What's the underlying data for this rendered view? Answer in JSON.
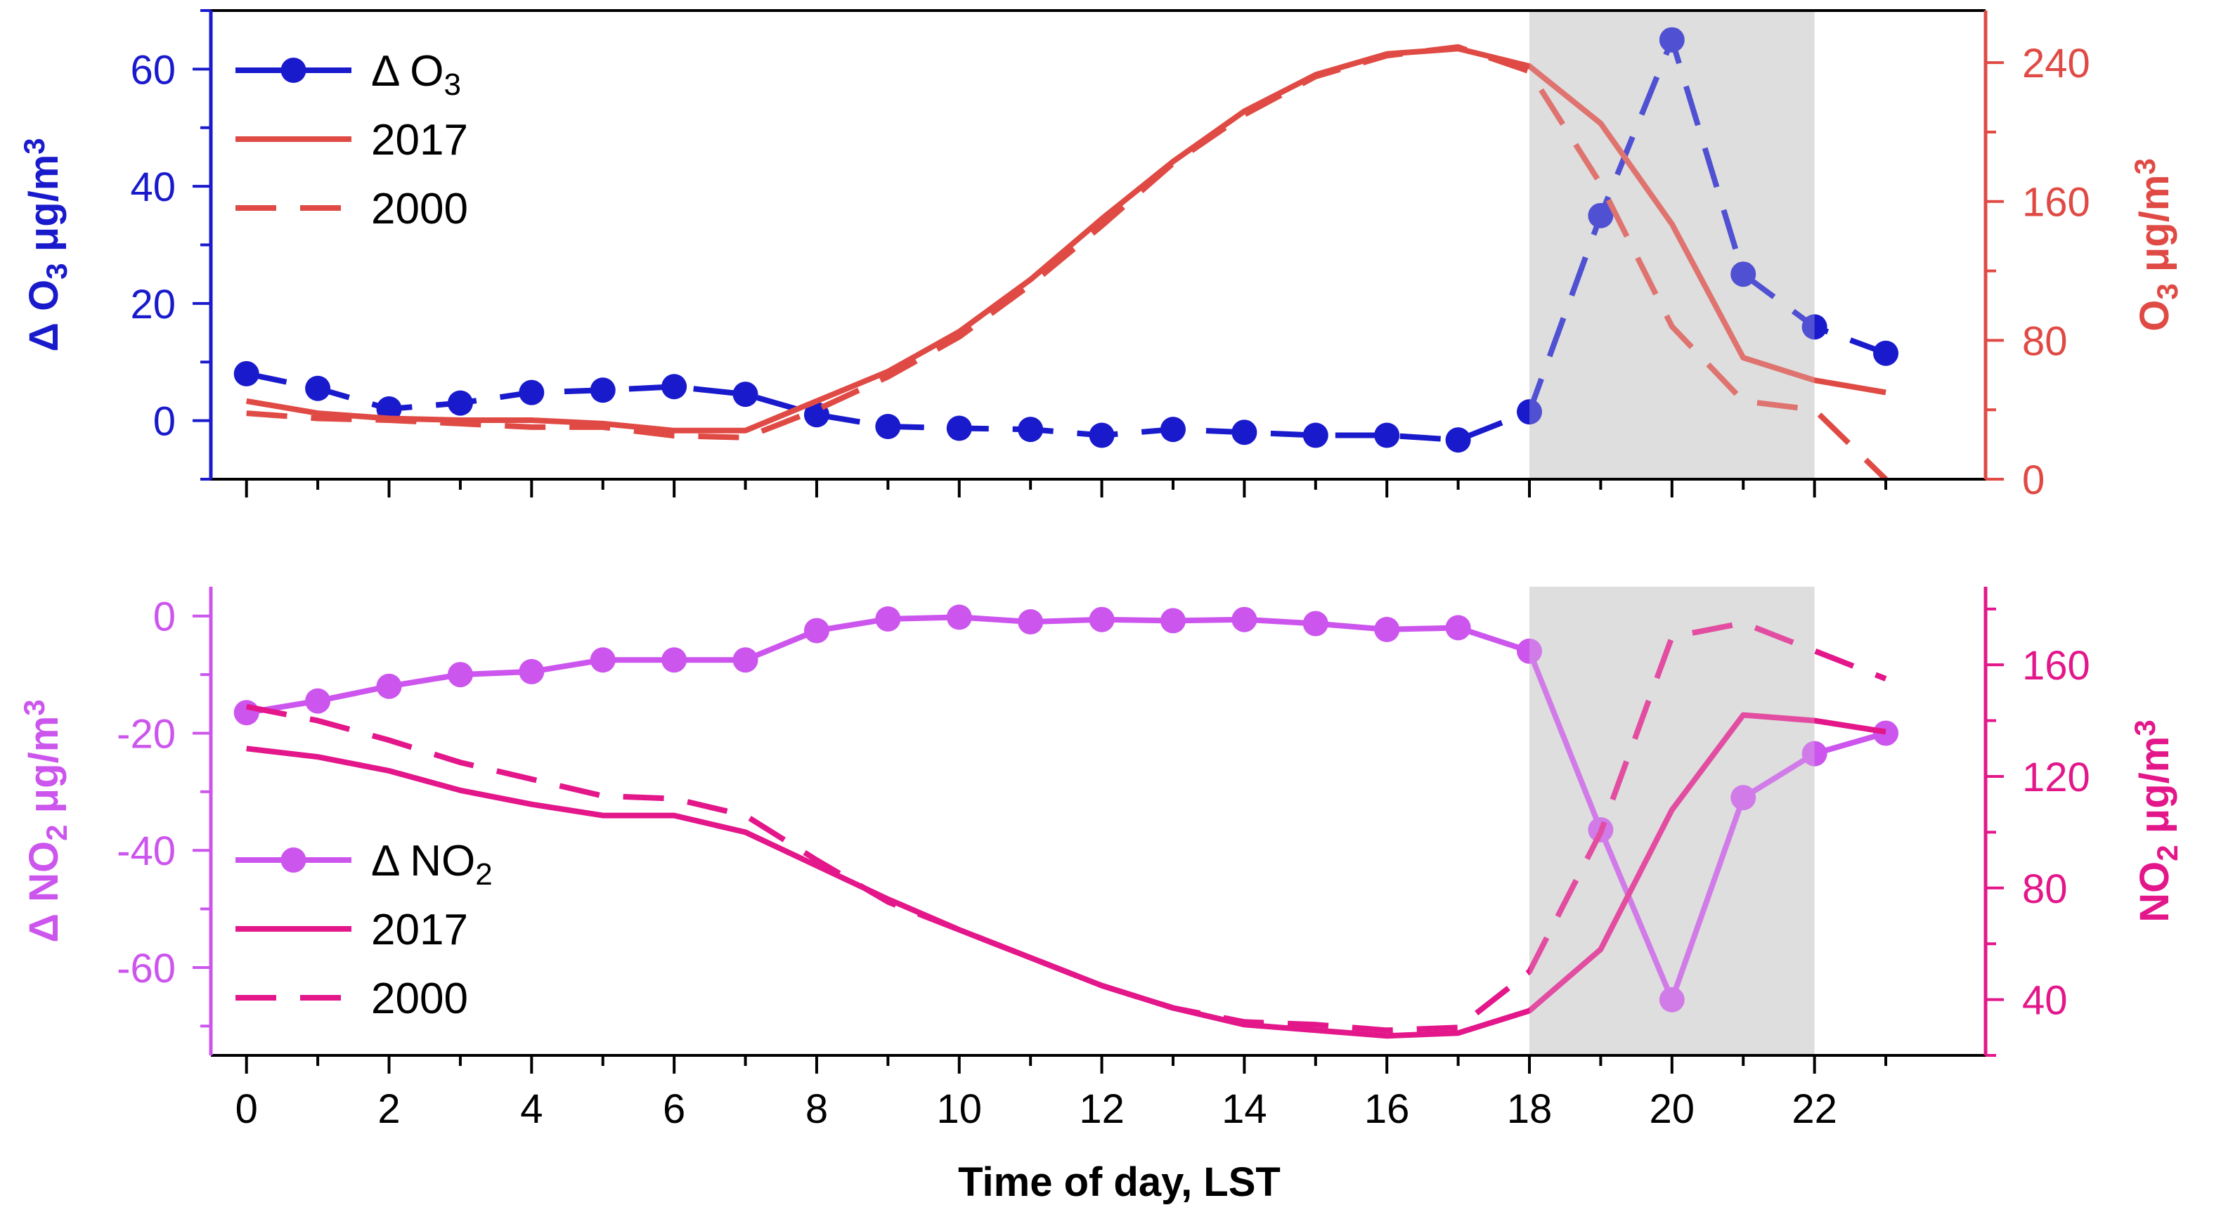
{
  "chart_data": [
    {
      "type": "line",
      "panel": "top",
      "xlabel": "Time of day, LST",
      "xlim": [
        -0.5,
        24.4
      ],
      "x_ticks": [
        "0",
        "2",
        "4",
        "6",
        "8",
        "10",
        "12",
        "14",
        "16",
        "18",
        "20",
        "22"
      ],
      "shaded_region": [
        18,
        22
      ],
      "x": [
        0,
        1,
        2,
        3,
        4,
        5,
        6,
        7,
        8,
        9,
        10,
        11,
        12,
        13,
        14,
        15,
        16,
        17,
        18,
        19,
        20,
        21,
        22,
        23
      ],
      "y_left": {
        "label_main": "Δ O",
        "label_sub": "3",
        "label_unit": " μg/m",
        "label_sup": "3",
        "lim": [
          -10,
          70
        ],
        "ticks": [
          "0",
          "20",
          "40",
          "60"
        ],
        "color": "#1a1acd"
      },
      "y_right": {
        "label_main": "O",
        "label_sub": "3",
        "label_unit": " μg/m",
        "label_sup": "3",
        "lim": [
          0,
          270
        ],
        "ticks": [
          "0",
          "80",
          "160",
          "240"
        ],
        "color": "#e04a44"
      },
      "series": [
        {
          "name_main": "Δ O",
          "name_sub": "3",
          "axis": "left",
          "color": "#1a1acd",
          "style": "dashed-markers",
          "values": [
            8,
            5.5,
            2,
            3,
            4.8,
            5.2,
            5.8,
            4.5,
            1,
            -1,
            -1.3,
            -1.5,
            -2.5,
            -1.5,
            -2,
            -2.5,
            -2.5,
            -3.3,
            1.5,
            35,
            65,
            25,
            16,
            11.5
          ]
        },
        {
          "name_main": "2017",
          "name_sub": "",
          "axis": "right",
          "color": "#e04a44",
          "style": "solid",
          "values": [
            45,
            38,
            35,
            34,
            34,
            32,
            28,
            28,
            45,
            62,
            85,
            115,
            150,
            183,
            212,
            233,
            245,
            248,
            238,
            205,
            147,
            70,
            57,
            50
          ]
        },
        {
          "name_main": "2000",
          "name_sub": "",
          "axis": "right",
          "color": "#e04a44",
          "style": "dashed",
          "values": [
            38,
            35,
            34,
            32,
            30,
            30,
            25,
            24,
            40,
            59,
            82,
            112,
            146,
            182,
            210,
            232,
            244,
            249,
            235,
            170,
            88,
            45,
            40,
            0
          ]
        }
      ],
      "legend_position": "top-left"
    },
    {
      "type": "line",
      "panel": "bottom",
      "xlabel": "Time of day, LST",
      "xlim": [
        -0.5,
        24.4
      ],
      "x_ticks": [
        "0",
        "2",
        "4",
        "6",
        "8",
        "10",
        "12",
        "14",
        "16",
        "18",
        "20",
        "22"
      ],
      "shaded_region": [
        18,
        22
      ],
      "x": [
        0,
        1,
        2,
        3,
        4,
        5,
        6,
        7,
        8,
        9,
        10,
        11,
        12,
        13,
        14,
        15,
        16,
        17,
        18,
        19,
        20,
        21,
        22,
        23
      ],
      "y_left": {
        "label_main": "Δ NO",
        "label_sub": "2",
        "label_unit": " μg/m",
        "label_sup": "3",
        "lim": [
          -75,
          5
        ],
        "ticks": [
          "0",
          "-20",
          "-40",
          "-60"
        ],
        "color": "#cc55ee"
      },
      "y_right": {
        "label_main": "NO",
        "label_sub": "2",
        "label_unit": " μg/m",
        "label_sup": "3",
        "lim": [
          20,
          188
        ],
        "ticks": [
          "40",
          "80",
          "120",
          "160"
        ],
        "color": "#e3168a"
      },
      "series": [
        {
          "name_main": "Δ NO",
          "name_sub": "2",
          "axis": "left",
          "color": "#cc55ee",
          "style": "solid-markers",
          "values": [
            -16.5,
            -14.5,
            -12,
            -10,
            -9.5,
            -7.5,
            -7.5,
            -7.5,
            -2.5,
            -0.5,
            -0.2,
            -1,
            -0.6,
            -0.8,
            -0.6,
            -1.3,
            -2.3,
            -2,
            -6,
            -36.5,
            -65.5,
            -31,
            -23.5,
            -20
          ]
        },
        {
          "name_main": "2017",
          "name_sub": "",
          "axis": "right",
          "color": "#e3168a",
          "style": "solid",
          "values": [
            130,
            127,
            122,
            115,
            110,
            106,
            106,
            100,
            88,
            76,
            65,
            55,
            45,
            37,
            31,
            29,
            27,
            28,
            36,
            58,
            108,
            142,
            140,
            136
          ]
        },
        {
          "name_main": "2000",
          "name_sub": "",
          "axis": "right",
          "color": "#e3168a",
          "style": "dashed",
          "values": [
            145,
            140,
            133,
            125,
            119,
            113,
            112,
            106,
            90,
            75,
            65,
            55,
            45,
            37,
            32,
            31,
            29,
            30,
            50,
            100,
            170,
            175,
            165,
            155
          ]
        }
      ],
      "legend_position": "bottom-left"
    }
  ]
}
